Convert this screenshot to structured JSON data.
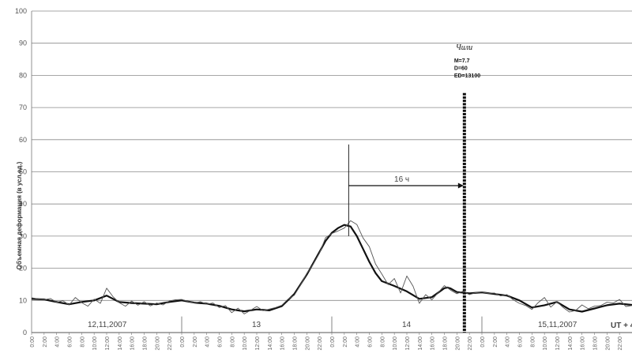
{
  "chart_data": {
    "type": "line",
    "title": "",
    "ylabel": "Объемная деформация (в усл.ед.)",
    "xlabel": "",
    "ylim": [
      0,
      100
    ],
    "yticks": [
      0,
      10,
      20,
      30,
      40,
      50,
      60,
      70,
      80,
      90,
      100
    ],
    "xlim": [
      0,
      96
    ],
    "x_tick_labels": [
      "0:00",
      "2:00",
      "4:00",
      "6:00",
      "8:00",
      "10:00",
      "12:00",
      "14:00",
      "16:00",
      "18:00",
      "20:00",
      "22:00"
    ],
    "days": [
      {
        "label": "12,11,2007",
        "start": 0
      },
      {
        "label": "13",
        "start": 24
      },
      {
        "label": "14",
        "start": 48
      },
      {
        "label": "15,11,2007",
        "start": 72
      }
    ],
    "timezone_label": "UT + 4",
    "grid": "horizontal",
    "series": [
      {
        "style": "smoothed",
        "x": [
          0,
          2,
          4,
          6,
          8,
          10,
          12,
          14,
          16,
          18,
          20,
          22,
          24,
          26,
          28,
          30,
          32,
          34,
          36,
          38,
          40,
          42,
          44,
          45,
          46,
          47,
          48,
          49,
          50,
          51,
          52,
          53,
          54,
          55,
          56,
          58,
          60,
          62,
          64,
          66,
          66.5,
          67,
          68,
          70,
          72,
          74,
          76,
          78,
          80,
          82,
          84,
          86,
          88,
          90,
          92,
          94,
          96
        ],
        "y": [
          10.5,
          10.3,
          9.5,
          8.8,
          9.5,
          10,
          11.5,
          9.5,
          9.2,
          9,
          8.8,
          9.5,
          10,
          9.3,
          9,
          8.3,
          7.2,
          6.6,
          7.2,
          6.9,
          8.2,
          12,
          18,
          21.5,
          25,
          28.5,
          31,
          32.5,
          33.5,
          33,
          30,
          26,
          22,
          18.5,
          16,
          14.5,
          12.8,
          10.5,
          11,
          13.8,
          14,
          13.7,
          12.6,
          12.2,
          12.5,
          12,
          11.5,
          10,
          7.8,
          8.5,
          9.5,
          7.2,
          6.5,
          7.5,
          8.5,
          9,
          8.6
        ]
      },
      {
        "style": "raw",
        "x": [
          0,
          1,
          2,
          3,
          4,
          5,
          6,
          7,
          8,
          9,
          10,
          11,
          12,
          13,
          14,
          15,
          16,
          17,
          18,
          19,
          20,
          21,
          22,
          23,
          24,
          25,
          26,
          27,
          28,
          29,
          30,
          31,
          32,
          33,
          34,
          35,
          36,
          37,
          38,
          39,
          40,
          41,
          42,
          43,
          44,
          45,
          46,
          47,
          48,
          49,
          50,
          51,
          52,
          53,
          54,
          55,
          56,
          57,
          58,
          59,
          60,
          61,
          62,
          63,
          64,
          65,
          66,
          67,
          68,
          69,
          70,
          71,
          72,
          73,
          74,
          75,
          76,
          77,
          78,
          79,
          80,
          81,
          82,
          83,
          84,
          85,
          86,
          87,
          88,
          89,
          90,
          91,
          92,
          93,
          94,
          95,
          96
        ],
        "y": [
          10.8,
          10.5,
          10.2,
          10.6,
          9.4,
          9.9,
          8.6,
          10.9,
          9.3,
          8.2,
          10.4,
          9.1,
          13.8,
          11.2,
          9.3,
          8.2,
          9.8,
          8.5,
          9.6,
          8.3,
          9.2,
          8.6,
          9.8,
          10.2,
          10.3,
          9.7,
          9.2,
          9.6,
          8.8,
          9.2,
          7.8,
          8.4,
          6.2,
          7.6,
          5.8,
          6.9,
          8.1,
          6.8,
          7.3,
          7.8,
          8.5,
          10.4,
          11.6,
          14.8,
          18.4,
          21.2,
          24.6,
          29.5,
          30.8,
          31.6,
          32.5,
          34.8,
          33.6,
          29.4,
          26.7,
          21.3,
          18.2,
          14.9,
          16.8,
          12.3,
          17.6,
          14.4,
          9.1,
          11.8,
          10.2,
          12.4,
          14.6,
          13.2,
          12.1,
          12.9,
          11.8,
          12.4,
          12.6,
          12.2,
          12.3,
          11.4,
          11.8,
          10.2,
          9.1,
          8.4,
          7.2,
          9.3,
          10.9,
          7.9,
          9.6,
          7.8,
          6.4,
          6.9,
          8.6,
          7.4,
          8.2,
          8.4,
          9.4,
          9.2,
          10.3,
          8.1,
          8.4
        ]
      }
    ],
    "annotations": {
      "event_label": "Чили",
      "event_params": [
        "M=7.7",
        "D=60",
        "ED=13100"
      ],
      "event_x": 69.2,
      "marker_x": 50.7,
      "interval_label": "16 ч"
    }
  }
}
